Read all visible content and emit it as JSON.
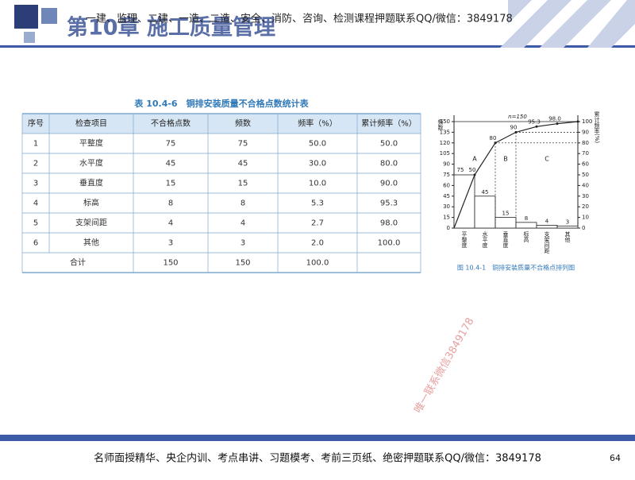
{
  "header": {
    "title": "第10章 施工质量管理",
    "banner": "一建、监理、二建、一造、二造、安全、消防、咨询、检测课程押题联系QQ/微信：3849178"
  },
  "table": {
    "title": "表 10.4-6　铜排安装质量不合格点数统计表",
    "columns": [
      "序号",
      "检查项目",
      "不合格点数",
      "频数",
      "频率（%）",
      "累计频率（%）"
    ],
    "rows": [
      [
        "1",
        "平整度",
        "75",
        "75",
        "50.0",
        "50.0"
      ],
      [
        "2",
        "水平度",
        "45",
        "45",
        "30.0",
        "80.0"
      ],
      [
        "3",
        "垂直度",
        "15",
        "15",
        "10.0",
        "90.0"
      ],
      [
        "4",
        "标高",
        "8",
        "8",
        "5.3",
        "95.3"
      ],
      [
        "5",
        "支架间距",
        "4",
        "4",
        "2.7",
        "98.0"
      ],
      [
        "6",
        "其他",
        "3",
        "3",
        "2.0",
        "100.0"
      ]
    ],
    "total": [
      "合计",
      "150",
      "150",
      "100.0"
    ]
  },
  "figure": {
    "type": "bar",
    "caption": "图 10.4-1　铜排安装质量不合格点排列图",
    "ylabel": "频数",
    "y2label": "累计频率(%)",
    "n_label": "n=150",
    "zones": [
      "A",
      "B",
      "C"
    ],
    "categories": [
      "平整度",
      "水平度",
      "垂直度",
      "标高",
      "支架间距",
      "其他"
    ],
    "values": [
      75,
      45,
      15,
      8,
      4,
      3
    ],
    "cumulative": [
      50,
      80,
      90,
      95.3,
      98.0,
      100
    ],
    "cumulative_labels": [
      "50",
      "80",
      "90",
      "95.3",
      "98.0",
      null
    ],
    "ylim": [
      0,
      150
    ],
    "yticks": [
      0,
      15,
      30,
      45,
      60,
      75,
      90,
      105,
      120,
      135,
      150
    ],
    "y2lim": [
      0,
      100
    ],
    "y2ticks": [
      0,
      10,
      20,
      30,
      40,
      50,
      60,
      70,
      80,
      90,
      100
    ]
  },
  "watermark": "唯一联系微信3849178",
  "footer": {
    "text": "名师面授精华、央企内训、考点串讲、习题模考、考前三页纸、绝密押题联系QQ/微信：3849178",
    "page": "64"
  }
}
